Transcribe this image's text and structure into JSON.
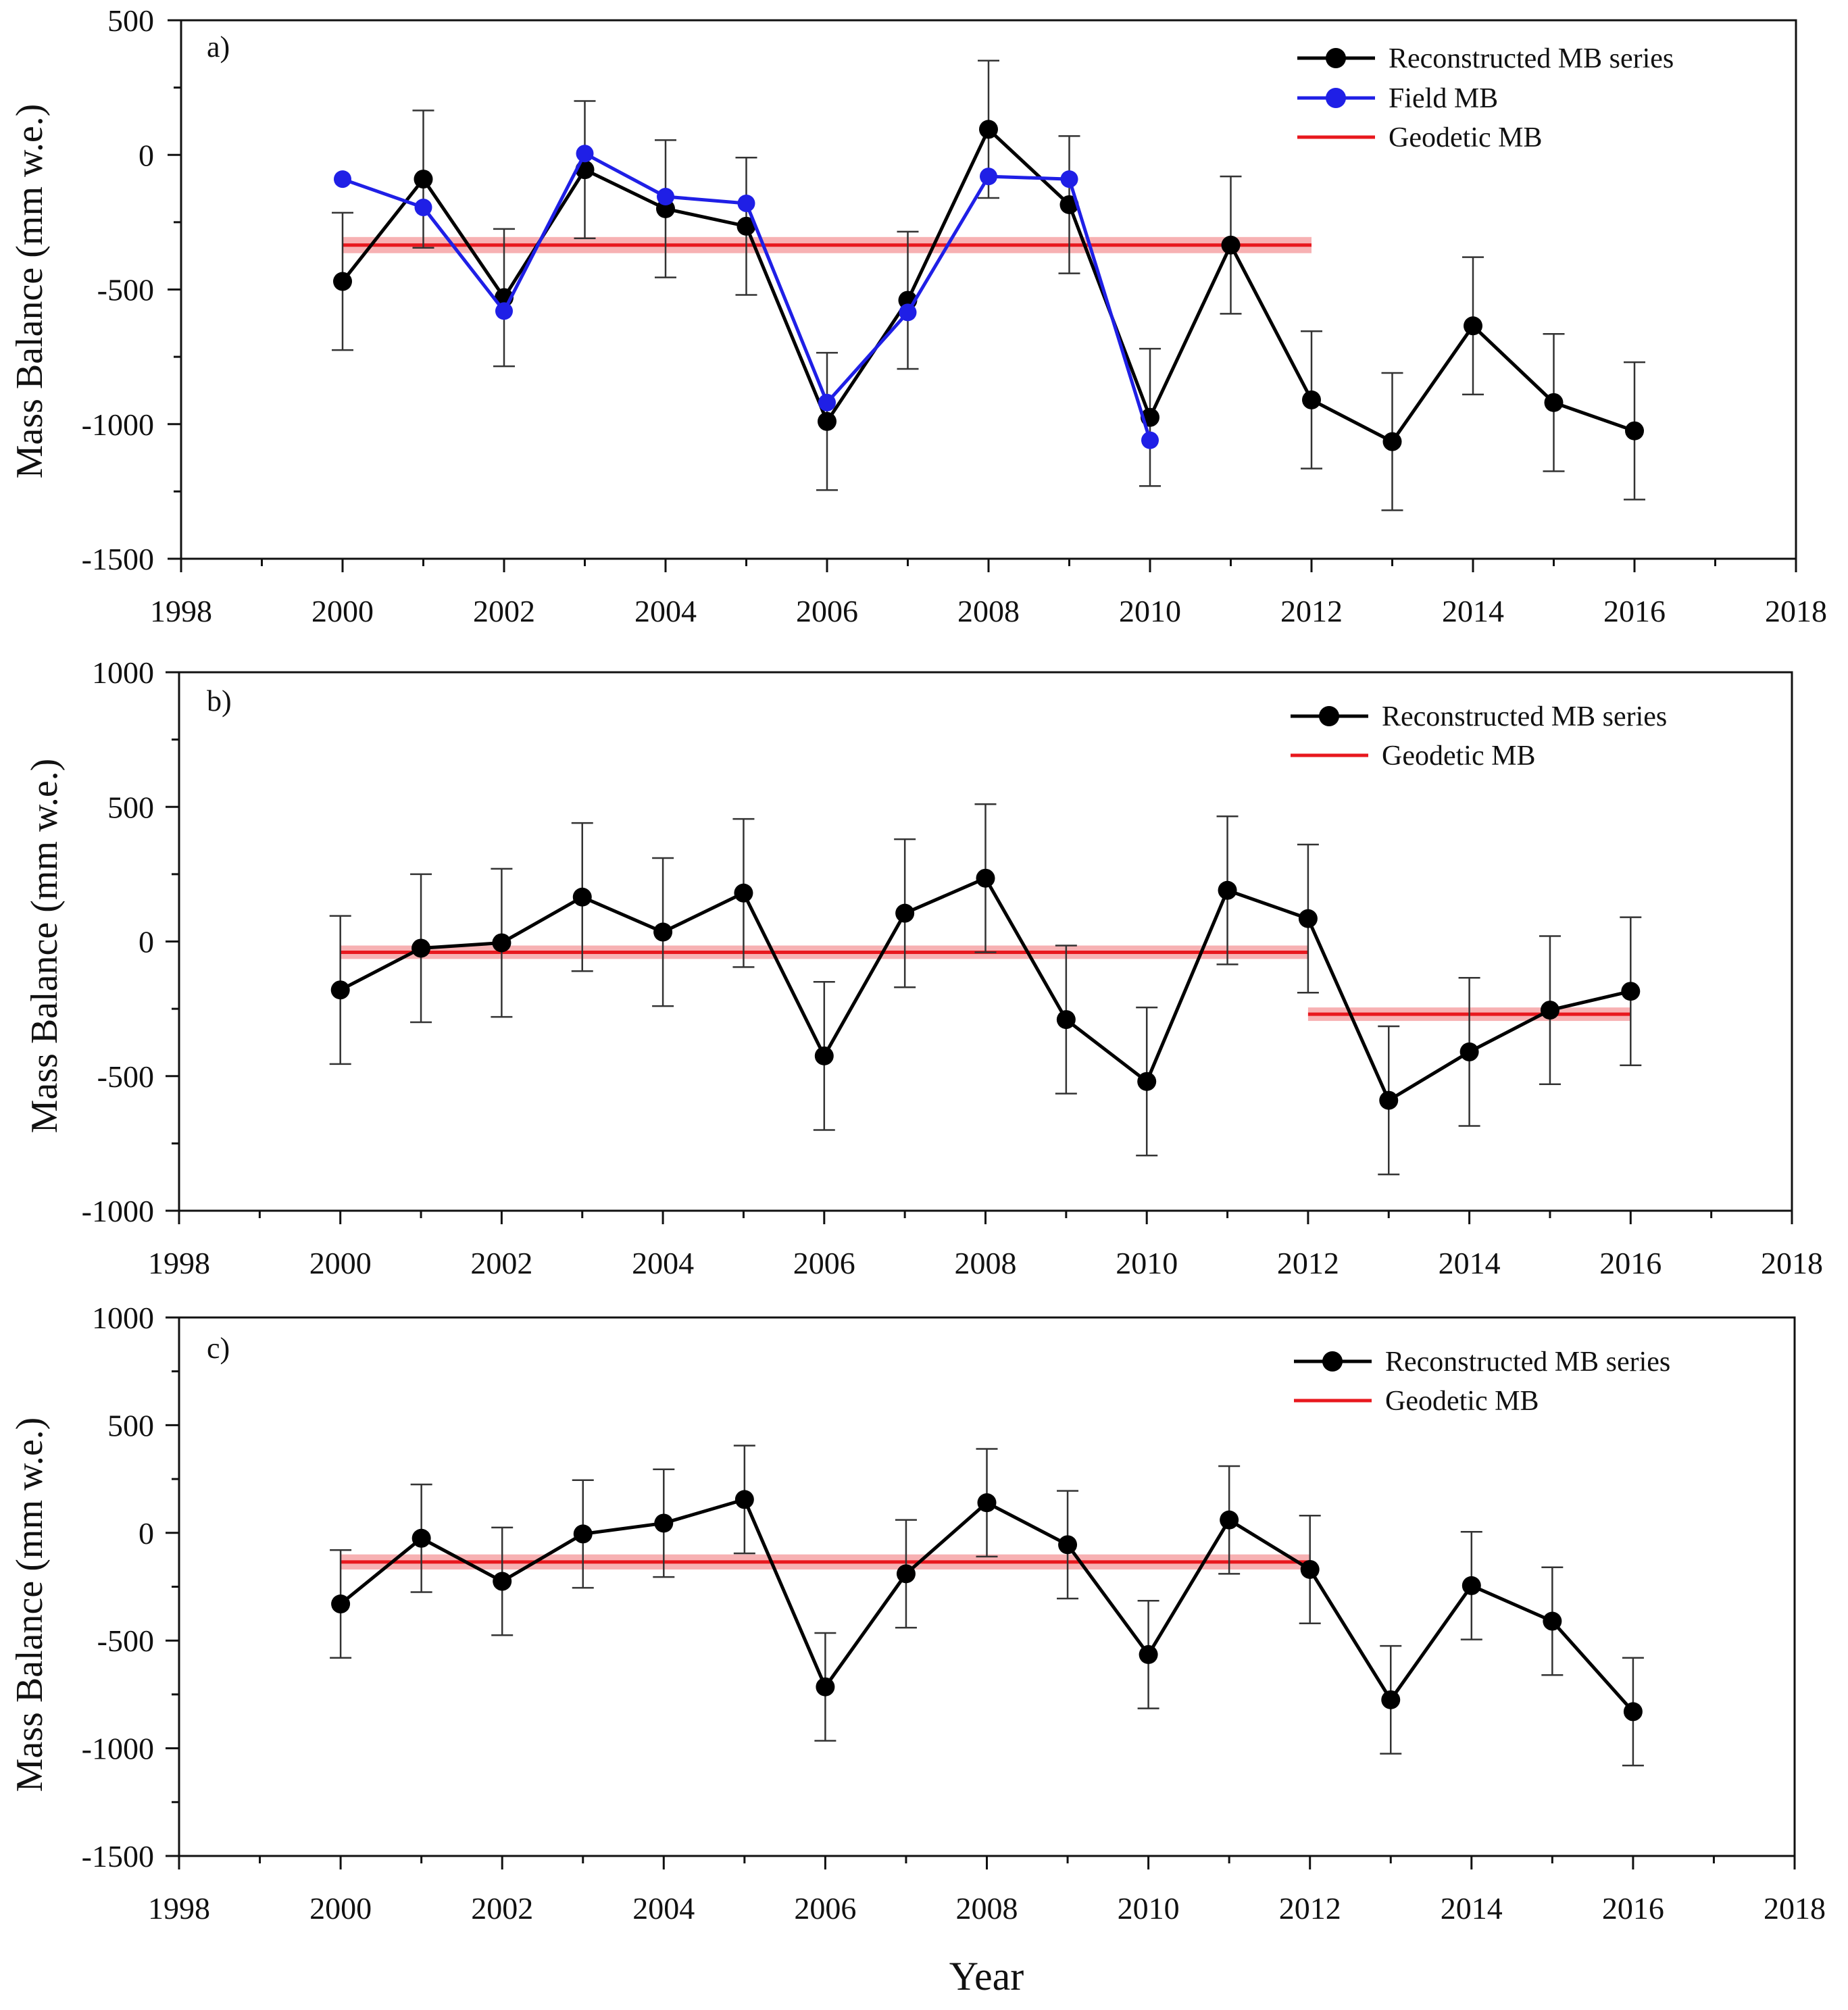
{
  "xlabel": "Year",
  "colors": {
    "reconstructed": "#000000",
    "field": "#1f1fe6",
    "geodetic": "#e8181e",
    "geodetic_band": "#f6a3a6",
    "axis": "#111111"
  },
  "chart_data": [
    {
      "type": "line",
      "panel_label": "a)",
      "ylabel": "Mass Balance (mm w.e.)",
      "xlim": [
        1998,
        2018
      ],
      "ylim": [
        -1500,
        500
      ],
      "x_major_ticks": [
        "1998",
        "2000",
        "2002",
        "2004",
        "2006",
        "2008",
        "2010",
        "2012",
        "2014",
        "2016",
        "2018"
      ],
      "y_major_ticks": [
        "-1500",
        "-1000",
        "-500",
        "0",
        "500"
      ],
      "legend": [
        "Reconstructed MB series",
        "Field MB",
        "Geodetic MB"
      ],
      "series": [
        {
          "name": "Reconstructed MB series",
          "x": [
            2000,
            2001,
            2002,
            2003,
            2004,
            2005,
            2006,
            2007,
            2008,
            2009,
            2010,
            2011,
            2012,
            2013,
            2014,
            2015,
            2016
          ],
          "values": [
            -470,
            -90,
            -530,
            -55,
            -200,
            -265,
            -990,
            -540,
            95,
            -185,
            -975,
            -335,
            -910,
            -1065,
            -635,
            -920,
            -1025
          ],
          "error": 255
        },
        {
          "name": "Field MB",
          "x": [
            2000,
            2001,
            2002,
            2003,
            2004,
            2005,
            2006,
            2007,
            2008,
            2009,
            2010
          ],
          "values": [
            -90,
            -195,
            -580,
            5,
            -155,
            -180,
            -920,
            -585,
            -80,
            -90,
            -1060
          ]
        }
      ],
      "geodetic": [
        {
          "name": "Geodetic MB",
          "x_start": 2000,
          "x_end": 2012,
          "value": -335,
          "uncertainty": 30
        }
      ]
    },
    {
      "type": "line",
      "panel_label": "b)",
      "ylabel": "Mass Balance (mm w.e.)",
      "xlim": [
        1998,
        2018
      ],
      "ylim": [
        -1000,
        1000
      ],
      "x_major_ticks": [
        "1998",
        "2000",
        "2002",
        "2004",
        "2006",
        "2008",
        "2010",
        "2012",
        "2014",
        "2016",
        "2018"
      ],
      "y_major_ticks": [
        "-1000",
        "-500",
        "0",
        "500",
        "1000"
      ],
      "legend": [
        "Reconstructed MB series",
        "Geodetic MB"
      ],
      "series": [
        {
          "name": "Reconstructed MB series",
          "x": [
            2000,
            2001,
            2002,
            2003,
            2004,
            2005,
            2006,
            2007,
            2008,
            2009,
            2010,
            2011,
            2012,
            2013,
            2014,
            2015,
            2016
          ],
          "values": [
            -180,
            -25,
            -5,
            165,
            35,
            180,
            -425,
            105,
            235,
            -290,
            -520,
            190,
            85,
            -590,
            -410,
            -255,
            -185
          ],
          "error": 275
        }
      ],
      "geodetic": [
        {
          "name": "Geodetic MB",
          "x_start": 2000,
          "x_end": 2012,
          "value": -40,
          "uncertainty": 25
        },
        {
          "name": "Geodetic MB",
          "x_start": 2012,
          "x_end": 2016,
          "value": -270,
          "uncertainty": 25
        }
      ]
    },
    {
      "type": "line",
      "panel_label": "c)",
      "ylabel": "Mass Balance (mm w.e.)",
      "xlim": [
        1998,
        2018
      ],
      "ylim": [
        -1500,
        1000
      ],
      "x_major_ticks": [
        "1998",
        "2000",
        "2002",
        "2004",
        "2006",
        "2008",
        "2010",
        "2012",
        "2014",
        "2016",
        "2018"
      ],
      "y_major_ticks": [
        "-1500",
        "-1000",
        "-500",
        "0",
        "500",
        "1000"
      ],
      "legend": [
        "Reconstructed MB series",
        "Geodetic MB"
      ],
      "series": [
        {
          "name": "Reconstructed MB series",
          "x": [
            2000,
            2001,
            2002,
            2003,
            2004,
            2005,
            2006,
            2007,
            2008,
            2009,
            2010,
            2011,
            2012,
            2013,
            2014,
            2015,
            2016
          ],
          "values": [
            -330,
            -25,
            -225,
            -5,
            45,
            155,
            -715,
            -190,
            140,
            -55,
            -565,
            60,
            -170,
            -775,
            -245,
            -410,
            -830
          ],
          "error": 250
        }
      ],
      "geodetic": [
        {
          "name": "Geodetic MB",
          "x_start": 2000,
          "x_end": 2012,
          "value": -135,
          "uncertainty": 35
        }
      ]
    }
  ]
}
